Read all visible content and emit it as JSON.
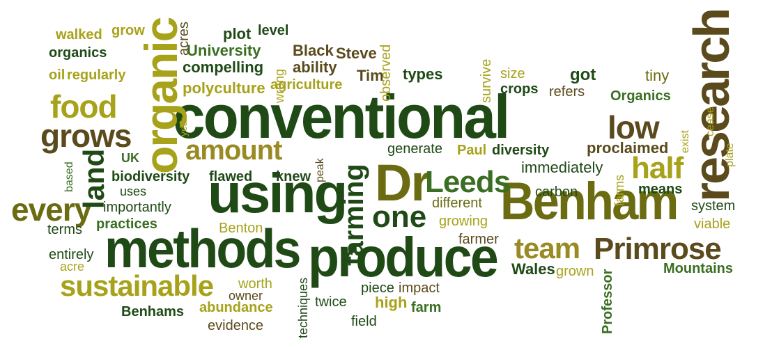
{
  "colors": {
    "dark_green": "#1f4a16",
    "mid_green": "#3a6e22",
    "olive": "#6b6b12",
    "khaki": "#a7a21a",
    "brown": "#5a4a1c",
    "gold": "#9a8a24"
  },
  "words": [
    {
      "id": "conventional",
      "text": "conventional",
      "color": "dark_green"
    },
    {
      "id": "methods",
      "text": "methods",
      "color": "dark_green"
    },
    {
      "id": "produce",
      "text": "produce",
      "color": "dark_green"
    },
    {
      "id": "using",
      "text": "using",
      "color": "dark_green"
    },
    {
      "id": "benham",
      "text": "Benham",
      "color": "olive"
    },
    {
      "id": "dr",
      "text": "Dr",
      "color": "olive"
    },
    {
      "id": "research",
      "text": "research",
      "color": "brown"
    },
    {
      "id": "organic",
      "text": "organic",
      "color": "khaki"
    },
    {
      "id": "sustainable",
      "text": "sustainable",
      "color": "khaki"
    },
    {
      "id": "primrose",
      "text": "Primrose",
      "color": "brown"
    },
    {
      "id": "team",
      "text": "team",
      "color": "gold"
    },
    {
      "id": "leeds",
      "text": "Leeds",
      "color": "mid_green"
    },
    {
      "id": "one",
      "text": "one",
      "color": "dark_green"
    },
    {
      "id": "farming",
      "text": "farming",
      "color": "dark_green"
    },
    {
      "id": "every",
      "text": "every",
      "color": "olive"
    },
    {
      "id": "grows",
      "text": "grows",
      "color": "brown"
    },
    {
      "id": "food",
      "text": "food",
      "color": "khaki"
    },
    {
      "id": "land",
      "text": "land",
      "color": "dark_green"
    },
    {
      "id": "amount",
      "text": "amount",
      "color": "gold"
    },
    {
      "id": "half",
      "text": "half",
      "color": "khaki"
    },
    {
      "id": "low",
      "text": "low",
      "color": "brown"
    },
    {
      "id": "walked",
      "text": "walked",
      "color": "khaki"
    },
    {
      "id": "grow",
      "text": "grow",
      "color": "khaki"
    },
    {
      "id": "acres",
      "text": "acres",
      "color": "brown"
    },
    {
      "id": "plot",
      "text": "plot",
      "color": "dark_green"
    },
    {
      "id": "level",
      "text": "level",
      "color": "dark_green"
    },
    {
      "id": "organics_lower",
      "text": "organics",
      "color": "dark_green"
    },
    {
      "id": "university",
      "text": "University",
      "color": "mid_green"
    },
    {
      "id": "black",
      "text": "Black",
      "color": "brown"
    },
    {
      "id": "steve",
      "text": "Steve",
      "color": "brown"
    },
    {
      "id": "observed",
      "text": "observed",
      "color": "khaki"
    },
    {
      "id": "compelling",
      "text": "compelling",
      "color": "dark_green"
    },
    {
      "id": "wrong",
      "text": "wrong",
      "color": "khaki"
    },
    {
      "id": "ability",
      "text": "ability",
      "color": "brown"
    },
    {
      "id": "survive",
      "text": "survive",
      "color": "khaki"
    },
    {
      "id": "size",
      "text": "size",
      "color": "khaki"
    },
    {
      "id": "got",
      "text": "got",
      "color": "dark_green"
    },
    {
      "id": "tiny",
      "text": "tiny",
      "color": "olive"
    },
    {
      "id": "oil",
      "text": "oil",
      "color": "khaki"
    },
    {
      "id": "regularly",
      "text": "regularly",
      "color": "khaki"
    },
    {
      "id": "tim",
      "text": "Tim",
      "color": "brown"
    },
    {
      "id": "types",
      "text": "types",
      "color": "dark_green"
    },
    {
      "id": "polyculture",
      "text": "polyculture",
      "color": "khaki"
    },
    {
      "id": "agriculture",
      "text": "agriculture",
      "color": "khaki"
    },
    {
      "id": "crops",
      "text": "crops",
      "color": "dark_green"
    },
    {
      "id": "refers",
      "text": "refers",
      "color": "brown"
    },
    {
      "id": "organics_cap",
      "text": "Organics",
      "color": "mid_green"
    },
    {
      "id": "plate",
      "text": "plate",
      "color": "khaki"
    },
    {
      "id": "cease",
      "text": "cease",
      "color": "khaki"
    },
    {
      "id": "year",
      "text": "year",
      "color": "khaki"
    },
    {
      "id": "exist",
      "text": "exist",
      "color": "khaki"
    },
    {
      "id": "uk",
      "text": "UK",
      "color": "mid_green"
    },
    {
      "id": "generate",
      "text": "generate",
      "color": "dark_green"
    },
    {
      "id": "paul",
      "text": "Paul",
      "color": "khaki"
    },
    {
      "id": "diversity",
      "text": "diversity",
      "color": "dark_green"
    },
    {
      "id": "proclaimed",
      "text": "proclaimed",
      "color": "brown"
    },
    {
      "id": "based",
      "text": "based",
      "color": "mid_green"
    },
    {
      "id": "biodiversity",
      "text": "biodiversity",
      "color": "dark_green"
    },
    {
      "id": "flawed",
      "text": "flawed",
      "color": "dark_green"
    },
    {
      "id": "knew",
      "text": "knew",
      "color": "dark_green"
    },
    {
      "id": "peak",
      "text": "peak",
      "color": "brown"
    },
    {
      "id": "immediately",
      "text": "immediately",
      "color": "dark_green"
    },
    {
      "id": "farms",
      "text": "farms",
      "color": "khaki"
    },
    {
      "id": "uses",
      "text": "uses",
      "color": "dark_green"
    },
    {
      "id": "carbon",
      "text": "carbon",
      "color": "dark_green"
    },
    {
      "id": "means",
      "text": "means",
      "color": "dark_green"
    },
    {
      "id": "importantly",
      "text": "importantly",
      "color": "dark_green"
    },
    {
      "id": "different",
      "text": "different",
      "color": "olive"
    },
    {
      "id": "system",
      "text": "system",
      "color": "dark_green"
    },
    {
      "id": "terms",
      "text": "terms",
      "color": "dark_green"
    },
    {
      "id": "practices",
      "text": "practices",
      "color": "mid_green"
    },
    {
      "id": "benton",
      "text": "Benton",
      "color": "khaki"
    },
    {
      "id": "growing",
      "text": "growing",
      "color": "khaki"
    },
    {
      "id": "viable",
      "text": "viable",
      "color": "khaki"
    },
    {
      "id": "farmer",
      "text": "farmer",
      "color": "brown"
    },
    {
      "id": "entirely",
      "text": "entirely",
      "color": "dark_green"
    },
    {
      "id": "acre",
      "text": "acre",
      "color": "khaki"
    },
    {
      "id": "wales",
      "text": "Wales",
      "color": "dark_green"
    },
    {
      "id": "grown",
      "text": "grown",
      "color": "khaki"
    },
    {
      "id": "mountains",
      "text": "Mountains",
      "color": "mid_green"
    },
    {
      "id": "worth",
      "text": "worth",
      "color": "khaki"
    },
    {
      "id": "owner",
      "text": "owner",
      "color": "brown"
    },
    {
      "id": "techniques",
      "text": "techniques",
      "color": "dark_green"
    },
    {
      "id": "piece",
      "text": "piece",
      "color": "dark_green"
    },
    {
      "id": "impact",
      "text": "impact",
      "color": "brown"
    },
    {
      "id": "professor",
      "text": "Professor",
      "color": "mid_green"
    },
    {
      "id": "twice",
      "text": "twice",
      "color": "dark_green"
    },
    {
      "id": "high",
      "text": "high",
      "color": "khaki"
    },
    {
      "id": "benhams",
      "text": "Benhams",
      "color": "dark_green"
    },
    {
      "id": "abundance",
      "text": "abundance",
      "color": "khaki"
    },
    {
      "id": "farm",
      "text": "farm",
      "color": "mid_green"
    },
    {
      "id": "evidence",
      "text": "evidence",
      "color": "brown"
    },
    {
      "id": "field",
      "text": "field",
      "color": "dark_green"
    }
  ]
}
